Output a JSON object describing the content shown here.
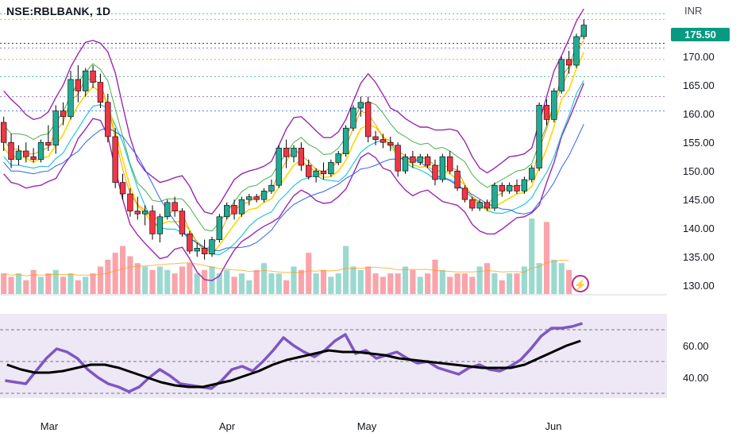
{
  "header": {
    "symbol_label": "NSE:RBLBANK, 1D",
    "currency": "INR",
    "last_price": "175.50"
  },
  "colors": {
    "up": "#22ab94",
    "down": "#f23645",
    "rsi": "#7e57c2",
    "rsi_ma": "#000000",
    "price_tag": "#089981"
  },
  "icons": {
    "alert": "lightning-icon"
  },
  "chart_data": [
    {
      "type": "candlestick",
      "symbol": "NSE:RBLBANK",
      "interval": "1D",
      "y_axis_ticks": [
        "130.00",
        "135.00",
        "140.00",
        "145.00",
        "150.00",
        "155.00",
        "160.00",
        "165.00",
        "170.00"
      ],
      "ylim": [
        128.5,
        178.5
      ],
      "x_axis_labels": [
        "Mar",
        "Apr",
        "May",
        "Jun"
      ],
      "last_price": 175.5,
      "candles": [
        {
          "o": 158.5,
          "h": 159.5,
          "l": 153.5,
          "c": 155.0
        },
        {
          "o": 155.0,
          "h": 156.5,
          "l": 150.5,
          "c": 152.0
        },
        {
          "o": 152.0,
          "h": 154.5,
          "l": 151.0,
          "c": 153.5
        },
        {
          "o": 153.5,
          "h": 155.0,
          "l": 151.5,
          "c": 152.5
        },
        {
          "o": 152.5,
          "h": 154.0,
          "l": 151.5,
          "c": 152.0
        },
        {
          "o": 152.0,
          "h": 155.5,
          "l": 151.5,
          "c": 155.0
        },
        {
          "o": 155.0,
          "h": 158.0,
          "l": 153.5,
          "c": 154.5
        },
        {
          "o": 154.5,
          "h": 161.5,
          "l": 153.0,
          "c": 160.5
        },
        {
          "o": 160.5,
          "h": 162.0,
          "l": 158.0,
          "c": 159.5
        },
        {
          "o": 159.5,
          "h": 167.5,
          "l": 159.0,
          "c": 166.0
        },
        {
          "o": 166.0,
          "h": 168.5,
          "l": 162.0,
          "c": 164.0
        },
        {
          "o": 164.0,
          "h": 168.0,
          "l": 163.0,
          "c": 167.5
        },
        {
          "o": 167.5,
          "h": 168.5,
          "l": 164.5,
          "c": 165.5
        },
        {
          "o": 165.5,
          "h": 167.0,
          "l": 161.0,
          "c": 162.0
        },
        {
          "o": 162.0,
          "h": 163.5,
          "l": 155.0,
          "c": 156.0
        },
        {
          "o": 156.0,
          "h": 157.5,
          "l": 147.0,
          "c": 148.0
        },
        {
          "o": 148.0,
          "h": 149.5,
          "l": 145.0,
          "c": 146.0
        },
        {
          "o": 146.0,
          "h": 147.0,
          "l": 142.0,
          "c": 143.0
        },
        {
          "o": 143.0,
          "h": 145.5,
          "l": 141.5,
          "c": 142.5
        },
        {
          "o": 142.5,
          "h": 144.0,
          "l": 140.5,
          "c": 143.0
        },
        {
          "o": 143.0,
          "h": 144.0,
          "l": 138.0,
          "c": 139.0
        },
        {
          "o": 139.0,
          "h": 142.5,
          "l": 137.5,
          "c": 142.0
        },
        {
          "o": 142.0,
          "h": 145.0,
          "l": 141.5,
          "c": 144.5
        },
        {
          "o": 144.5,
          "h": 145.5,
          "l": 142.0,
          "c": 143.0
        },
        {
          "o": 143.0,
          "h": 143.5,
          "l": 138.5,
          "c": 139.0
        },
        {
          "o": 139.0,
          "h": 139.5,
          "l": 135.5,
          "c": 136.0
        },
        {
          "o": 136.0,
          "h": 137.5,
          "l": 135.0,
          "c": 136.5
        },
        {
          "o": 136.5,
          "h": 138.0,
          "l": 134.5,
          "c": 135.5
        },
        {
          "o": 135.5,
          "h": 138.5,
          "l": 135.0,
          "c": 138.0
        },
        {
          "o": 138.0,
          "h": 142.5,
          "l": 137.5,
          "c": 142.0
        },
        {
          "o": 142.0,
          "h": 144.5,
          "l": 141.5,
          "c": 144.0
        },
        {
          "o": 144.0,
          "h": 145.0,
          "l": 141.5,
          "c": 142.5
        },
        {
          "o": 142.5,
          "h": 145.5,
          "l": 142.0,
          "c": 145.0
        },
        {
          "o": 145.0,
          "h": 146.0,
          "l": 144.0,
          "c": 145.5
        },
        {
          "o": 145.5,
          "h": 146.0,
          "l": 144.5,
          "c": 145.0
        },
        {
          "o": 145.0,
          "h": 147.0,
          "l": 144.5,
          "c": 146.5
        },
        {
          "o": 146.5,
          "h": 148.5,
          "l": 146.0,
          "c": 147.5
        },
        {
          "o": 147.5,
          "h": 154.5,
          "l": 147.0,
          "c": 154.0
        },
        {
          "o": 154.0,
          "h": 155.5,
          "l": 150.5,
          "c": 152.5
        },
        {
          "o": 152.5,
          "h": 154.5,
          "l": 151.5,
          "c": 154.0
        },
        {
          "o": 154.0,
          "h": 155.0,
          "l": 150.0,
          "c": 151.0
        },
        {
          "o": 151.0,
          "h": 152.0,
          "l": 148.5,
          "c": 149.0
        },
        {
          "o": 149.0,
          "h": 150.5,
          "l": 148.0,
          "c": 150.0
        },
        {
          "o": 150.0,
          "h": 151.5,
          "l": 148.5,
          "c": 149.5
        },
        {
          "o": 149.5,
          "h": 152.0,
          "l": 149.0,
          "c": 151.5
        },
        {
          "o": 151.5,
          "h": 153.5,
          "l": 151.0,
          "c": 153.0
        },
        {
          "o": 153.0,
          "h": 158.0,
          "l": 152.5,
          "c": 157.5
        },
        {
          "o": 157.5,
          "h": 161.5,
          "l": 157.0,
          "c": 161.0
        },
        {
          "o": 161.0,
          "h": 163.0,
          "l": 159.5,
          "c": 162.0
        },
        {
          "o": 162.0,
          "h": 163.0,
          "l": 155.0,
          "c": 156.0
        },
        {
          "o": 156.0,
          "h": 157.0,
          "l": 154.5,
          "c": 155.5
        },
        {
          "o": 155.5,
          "h": 156.5,
          "l": 154.0,
          "c": 155.0
        },
        {
          "o": 155.0,
          "h": 156.0,
          "l": 153.5,
          "c": 154.5
        },
        {
          "o": 154.5,
          "h": 155.0,
          "l": 149.0,
          "c": 150.0
        },
        {
          "o": 150.0,
          "h": 153.0,
          "l": 149.5,
          "c": 152.5
        },
        {
          "o": 152.5,
          "h": 153.5,
          "l": 150.5,
          "c": 151.5
        },
        {
          "o": 151.5,
          "h": 153.0,
          "l": 151.0,
          "c": 152.5
        },
        {
          "o": 152.5,
          "h": 153.0,
          "l": 150.5,
          "c": 151.0
        },
        {
          "o": 151.0,
          "h": 152.0,
          "l": 147.5,
          "c": 148.5
        },
        {
          "o": 148.5,
          "h": 153.0,
          "l": 148.0,
          "c": 152.5
        },
        {
          "o": 152.5,
          "h": 153.5,
          "l": 149.5,
          "c": 150.0
        },
        {
          "o": 150.0,
          "h": 151.0,
          "l": 146.5,
          "c": 147.0
        },
        {
          "o": 147.0,
          "h": 147.5,
          "l": 144.5,
          "c": 145.0
        },
        {
          "o": 145.0,
          "h": 145.5,
          "l": 143.0,
          "c": 143.5
        },
        {
          "o": 143.5,
          "h": 145.0,
          "l": 143.0,
          "c": 144.5
        },
        {
          "o": 144.5,
          "h": 145.0,
          "l": 143.0,
          "c": 143.5
        },
        {
          "o": 143.5,
          "h": 148.0,
          "l": 143.0,
          "c": 147.5
        },
        {
          "o": 147.5,
          "h": 148.0,
          "l": 145.5,
          "c": 146.5
        },
        {
          "o": 146.5,
          "h": 148.0,
          "l": 146.0,
          "c": 147.5
        },
        {
          "o": 147.5,
          "h": 148.5,
          "l": 146.0,
          "c": 146.5
        },
        {
          "o": 146.5,
          "h": 149.0,
          "l": 146.0,
          "c": 148.5
        },
        {
          "o": 148.5,
          "h": 151.0,
          "l": 148.0,
          "c": 150.5
        },
        {
          "o": 150.5,
          "h": 162.0,
          "l": 150.0,
          "c": 161.5
        },
        {
          "o": 161.5,
          "h": 162.5,
          "l": 158.0,
          "c": 159.0
        },
        {
          "o": 159.0,
          "h": 164.5,
          "l": 158.5,
          "c": 164.0
        },
        {
          "o": 164.0,
          "h": 170.0,
          "l": 163.5,
          "c": 169.5
        },
        {
          "o": 169.5,
          "h": 171.0,
          "l": 167.0,
          "c": 168.5
        },
        {
          "o": 168.5,
          "h": 174.0,
          "l": 168.0,
          "c": 173.5
        },
        {
          "o": 173.5,
          "h": 176.5,
          "l": 173.0,
          "c": 175.5
        }
      ],
      "volume": [
        3,
        2.5,
        3,
        2,
        3.5,
        2.5,
        3,
        3.5,
        2.5,
        3,
        2,
        2.5,
        3,
        4,
        5,
        6,
        7,
        5.5,
        4.5,
        4,
        3.5,
        4,
        3.5,
        3,
        4,
        4.5,
        3,
        3.5,
        4,
        3,
        3.5,
        2.5,
        3,
        2,
        3.5,
        4.5,
        3,
        3,
        2,
        4,
        3.5,
        6,
        3,
        3.5,
        2.5,
        3,
        7,
        4,
        3.5,
        4,
        3,
        2.5,
        3,
        3,
        4,
        3.5,
        2.5,
        3,
        5,
        3.5,
        2.5,
        3,
        3,
        2.5,
        4,
        4.5,
        3,
        2,
        3,
        3,
        4,
        11,
        4.5,
        10.5,
        5,
        4.5,
        3.5
      ],
      "rsi": [
        38,
        37,
        36,
        44,
        52,
        58,
        56,
        52,
        45,
        40,
        36,
        34,
        31,
        34,
        40,
        45,
        41,
        36,
        35,
        34,
        33,
        38,
        45,
        47,
        44,
        50,
        57,
        65,
        60,
        56,
        53,
        57,
        63,
        67,
        55,
        57,
        52,
        54,
        56,
        52,
        49,
        50,
        46,
        44,
        42,
        46,
        48,
        45,
        44,
        47,
        51,
        58,
        66,
        71,
        71,
        72,
        74
      ],
      "rsi_ma": [
        48,
        45,
        43,
        43,
        44,
        46,
        48,
        48,
        46,
        43,
        40,
        37,
        35,
        34,
        34,
        36,
        38,
        41,
        44,
        48,
        51,
        53,
        55,
        57,
        56,
        56,
        55,
        54,
        52,
        51,
        50,
        49,
        48,
        47,
        46,
        46,
        46,
        48,
        52,
        56,
        60,
        63
      ],
      "rsi_axis_ticks": [
        "40.00",
        "60.00"
      ],
      "rsi_lim": [
        25,
        80
      ]
    }
  ]
}
